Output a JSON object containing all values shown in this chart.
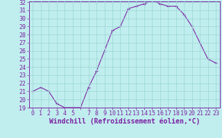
{
  "x": [
    0,
    1,
    2,
    3,
    4,
    5,
    6,
    7,
    8,
    9,
    10,
    11,
    12,
    13,
    14,
    15,
    16,
    17,
    18,
    19,
    20,
    21,
    22,
    23
  ],
  "y": [
    21.0,
    21.5,
    21.0,
    19.5,
    19.0,
    19.0,
    19.0,
    21.5,
    23.5,
    26.0,
    28.5,
    29.0,
    31.2,
    31.5,
    31.8,
    32.2,
    31.8,
    31.5,
    31.5,
    30.5,
    29.0,
    27.0,
    25.0,
    24.5
  ],
  "line_color": "#7b1fa2",
  "marker": "+",
  "marker_color": "#7b1fa2",
  "bg_color": "#c0eeee",
  "grid_color": "#a0d8d8",
  "xlabel": "Windchill (Refroidissement éolien,°C)",
  "ylim_min": 19,
  "ylim_max": 32,
  "xlim_min": -0.5,
  "xlim_max": 23.5,
  "yticks": [
    19,
    20,
    21,
    22,
    23,
    24,
    25,
    26,
    27,
    28,
    29,
    30,
    31,
    32
  ],
  "xtick_labels": [
    "0",
    "1",
    "2",
    "3",
    "4",
    "5",
    "",
    "7",
    "8",
    "9",
    "10",
    "11",
    "12",
    "13",
    "14",
    "15",
    "16",
    "17",
    "18",
    "19",
    "20",
    "21",
    "22",
    "23"
  ],
  "tick_color": "#7b1fa2",
  "axis_color": "#7b1fa2",
  "xlabel_fontsize": 7,
  "tick_fontsize": 6
}
